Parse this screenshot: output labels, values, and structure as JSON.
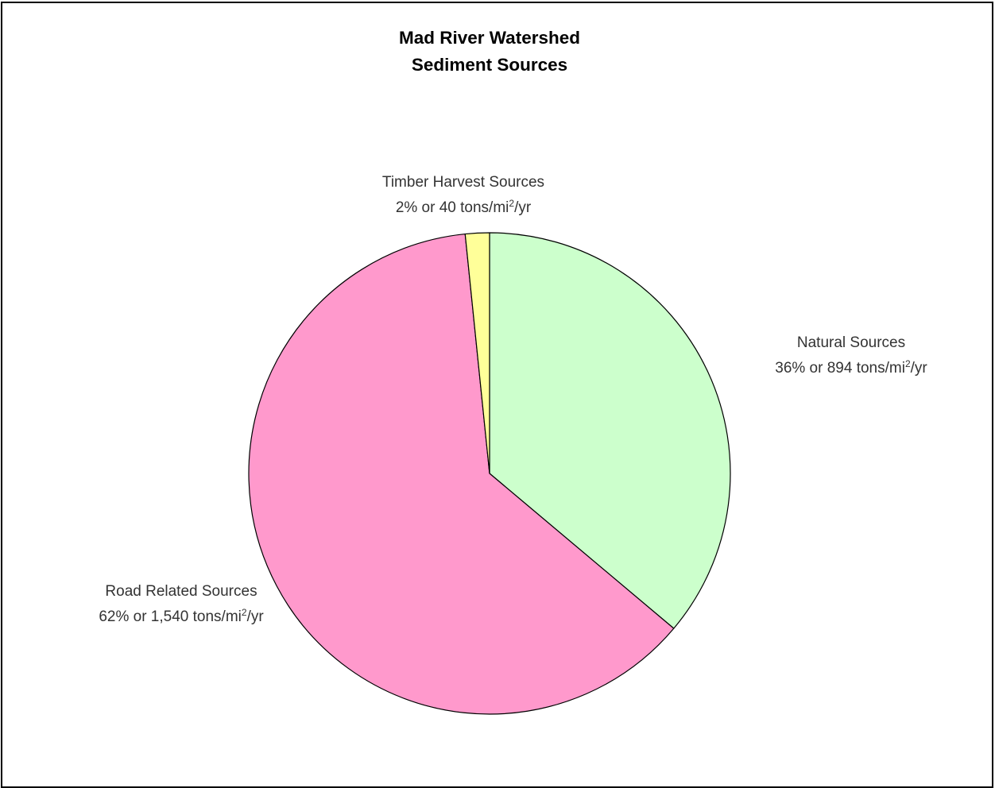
{
  "chart_data": {
    "type": "pie",
    "title": [
      "Mad River Watershed",
      "Sediment Sources"
    ],
    "slices": [
      {
        "name": "Natural Sources",
        "percent": 36,
        "value": 894,
        "detail_prefix": "36% or 894 tons/mi",
        "detail_exp": "2",
        "detail_suffix": "/yr",
        "color": "#ccffcc"
      },
      {
        "name": "Road Related Sources",
        "percent": 62,
        "value": 1540,
        "detail_prefix": "62% or 1,540 tons/mi",
        "detail_exp": "2",
        "detail_suffix": "/yr",
        "color": "#ff99cc"
      },
      {
        "name": "Timber Harvest Sources",
        "percent": 2,
        "value": 40,
        "detail_prefix": "2% or 40 tons/mi",
        "detail_exp": "2",
        "detail_suffix": "/yr",
        "color": "#ffff99"
      }
    ]
  }
}
